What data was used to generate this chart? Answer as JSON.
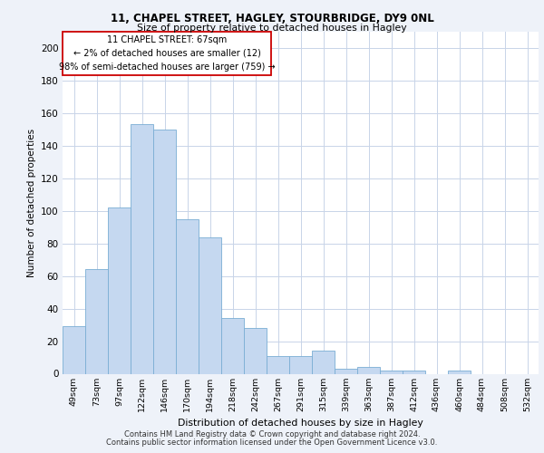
{
  "title1": "11, CHAPEL STREET, HAGLEY, STOURBRIDGE, DY9 0NL",
  "title2": "Size of property relative to detached houses in Hagley",
  "xlabel": "Distribution of detached houses by size in Hagley",
  "ylabel": "Number of detached properties",
  "bar_color": "#c5d8f0",
  "bar_edge_color": "#7aadd4",
  "categories": [
    "49sqm",
    "73sqm",
    "97sqm",
    "122sqm",
    "146sqm",
    "170sqm",
    "194sqm",
    "218sqm",
    "242sqm",
    "267sqm",
    "291sqm",
    "315sqm",
    "339sqm",
    "363sqm",
    "387sqm",
    "412sqm",
    "436sqm",
    "460sqm",
    "484sqm",
    "508sqm",
    "532sqm"
  ],
  "values": [
    29,
    64,
    102,
    153,
    150,
    95,
    84,
    34,
    28,
    11,
    11,
    14,
    3,
    4,
    2,
    2,
    0,
    2,
    0,
    0,
    0
  ],
  "ylim": [
    0,
    210
  ],
  "yticks": [
    0,
    20,
    40,
    60,
    80,
    100,
    120,
    140,
    160,
    180,
    200
  ],
  "annotation_text": "11 CHAPEL STREET: 67sqm\n← 2% of detached houses are smaller (12)\n98% of semi-detached houses are larger (759) →",
  "footer1": "Contains HM Land Registry data © Crown copyright and database right 2024.",
  "footer2": "Contains public sector information licensed under the Open Government Licence v3.0.",
  "background_color": "#eef2f9",
  "plot_bg_color": "#ffffff"
}
